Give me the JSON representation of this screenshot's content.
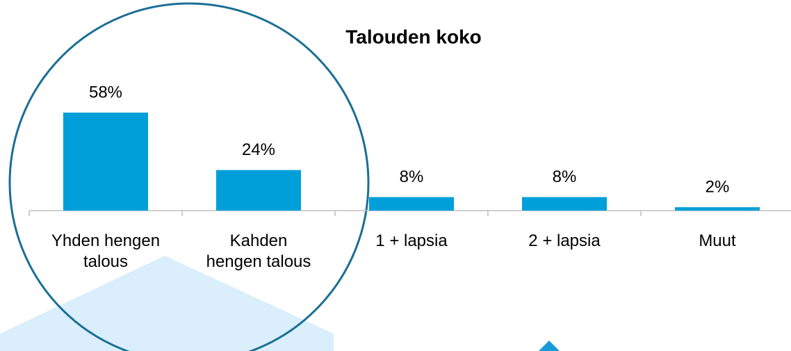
{
  "chart_data": {
    "type": "bar",
    "title": "Talouden koko",
    "categories": [
      "Yhden hengen\ntalous",
      "Kahden\nhengen talous",
      "1 + lapsia",
      "2 + lapsia",
      "Muut"
    ],
    "values": [
      58,
      24,
      8,
      8,
      2
    ],
    "value_labels": [
      "58%",
      "24%",
      "8%",
      "8%",
      "2%"
    ],
    "color": "#009fda"
  }
}
